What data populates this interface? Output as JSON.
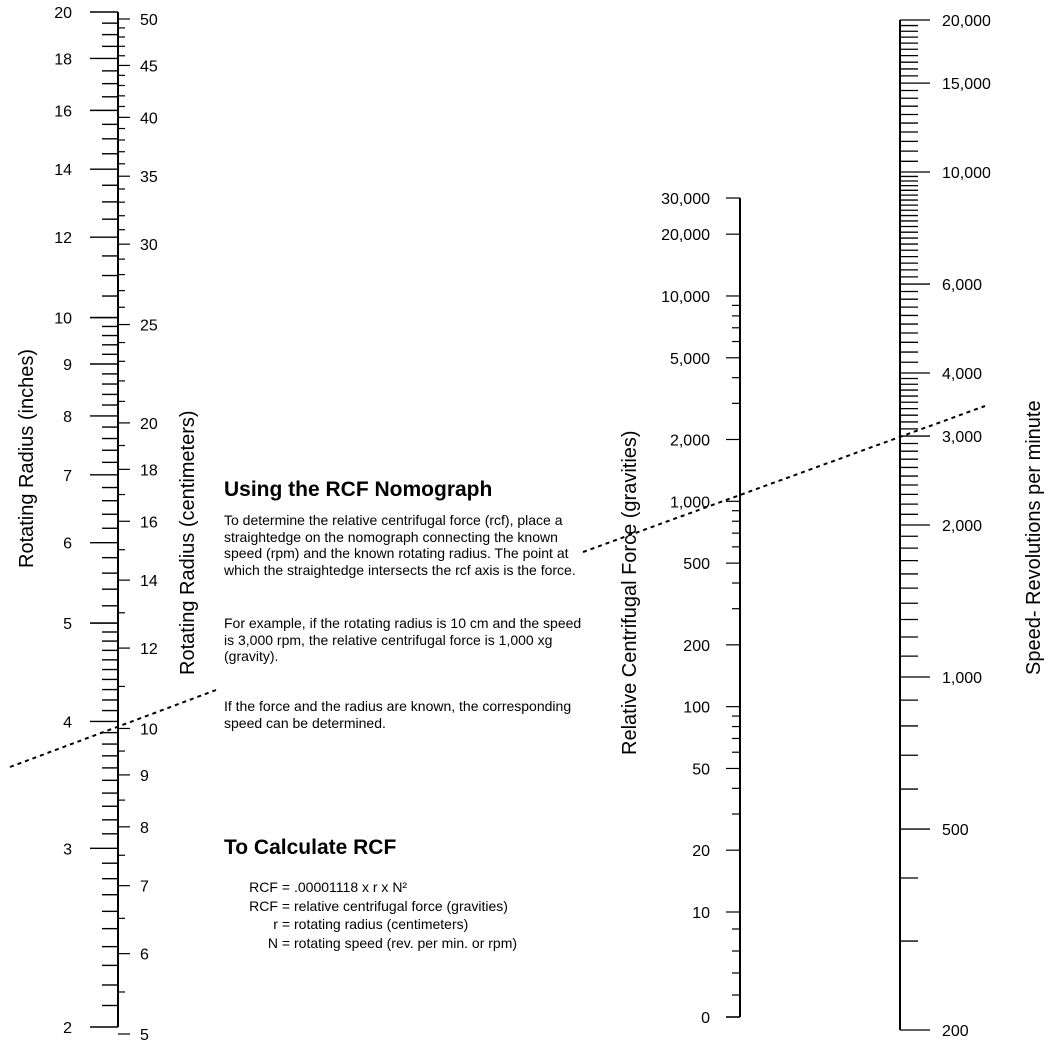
{
  "scales": {
    "radius_inches": {
      "title": "Rotating Radius (inches)",
      "labels": [
        "20",
        "18",
        "16",
        "14",
        "12",
        "10",
        "9",
        "8",
        "7",
        "6",
        "5",
        "4",
        "3",
        "2"
      ]
    },
    "radius_cm": {
      "title": "Rotating Radius (centimeters)",
      "labels": [
        "50",
        "45",
        "40",
        "35",
        "30",
        "25",
        "20",
        "18",
        "16",
        "14",
        "12",
        "10",
        "9",
        "8",
        "7",
        "6",
        "5"
      ]
    },
    "rcf": {
      "title": "Relative Centrifugal Force (gravities)",
      "labels": [
        "30,000",
        "20,000",
        "10,000",
        "5,000",
        "2,000",
        "1,000",
        "500",
        "200",
        "100",
        "50",
        "20",
        "10",
        "0"
      ]
    },
    "speed": {
      "title": "Speed- Revolutions per minute",
      "labels": [
        "20,000",
        "15,000",
        "10,000",
        "6,000",
        "4,000",
        "3,000",
        "2,000",
        "1,000",
        "500",
        "200"
      ]
    }
  },
  "instructions": {
    "heading": "Using the RCF Nomograph",
    "paragraph1": "To determine the relative centrifugal force (rcf), place a straightedge on the nomograph connecting the known speed (rpm) and the known rotating radius.  The point at which the straightedge intersects the rcf axis is the force.",
    "paragraph2": "For example, if the rotating radius is 10 cm and the speed is 3,000 rpm, the relative centrifugal force is 1,000 xg (gravity).",
    "paragraph3": "If the force and the radius are known, the corresponding speed can be determined."
  },
  "calculation": {
    "heading": "To Calculate RCF",
    "rows": [
      {
        "term": "RCF =",
        "def": ".00001118 x r x N²"
      },
      {
        "term": "RCF =",
        "def": "relative centrifugal force (gravities)"
      },
      {
        "term": "r =",
        "def": "rotating radius (centimeters)"
      },
      {
        "term": "N =",
        "def": "rotating speed (rev. per min. or  rpm)"
      }
    ]
  },
  "example": {
    "radius_cm": 10,
    "speed_rpm": 3000,
    "rcf": 1000
  }
}
